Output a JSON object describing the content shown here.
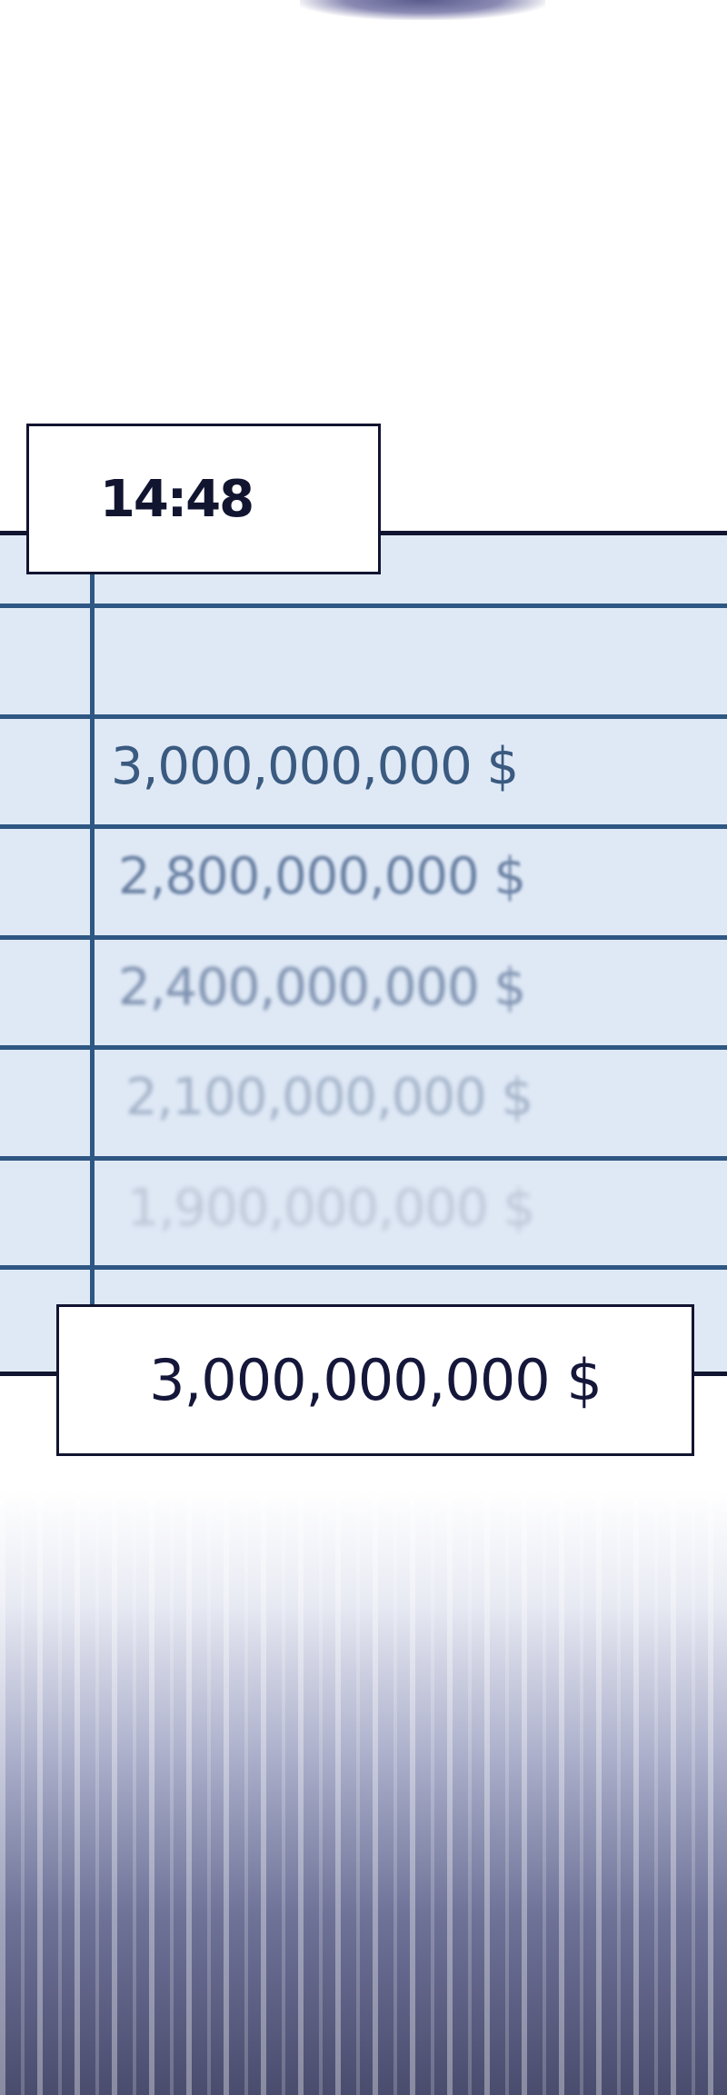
{
  "timestamp": "14:48",
  "table": {
    "rows": [
      {
        "value": "3,000,000,000 $"
      },
      {
        "value": "2,800,000,000 $"
      },
      {
        "value": "2,400,000,000 $"
      },
      {
        "value": "2,100,000,000 $"
      },
      {
        "value": "1,900,000,000 $"
      }
    ]
  },
  "highlight_value": "3,000,000,000 $",
  "colors": {
    "table_bg": "#dfe9f6",
    "grid_line": "#2f5783",
    "border": "#121530",
    "text": "#3a5a80"
  }
}
